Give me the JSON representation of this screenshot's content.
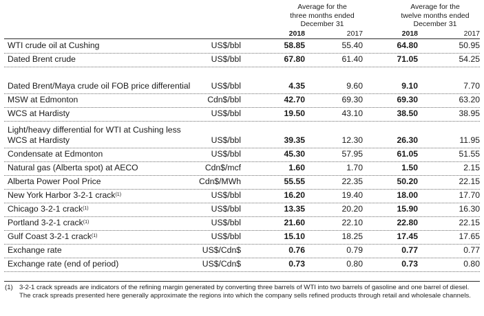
{
  "header": {
    "three_months": [
      "Average for the",
      "three months ended",
      "December 31"
    ],
    "twelve_months": [
      "Average for the",
      "twelve months ended",
      "December 31"
    ],
    "years": [
      "2018",
      "2017",
      "2018",
      "2017"
    ]
  },
  "rows": [
    {
      "label": "WTI crude oil at Cushing",
      "unit": "US$/bbl",
      "q2018": "58.85",
      "q2017": "55.40",
      "y2018": "64.80",
      "y2017": "50.95"
    },
    {
      "label": "Dated Brent crude",
      "unit": "US$/bbl",
      "q2018": "67.80",
      "q2017": "61.40",
      "y2018": "71.05",
      "y2017": "54.25"
    },
    {
      "label": "Dated Brent/Maya crude oil FOB price differential",
      "unit": "US$/bbl",
      "q2018": "4.35",
      "q2017": "9.60",
      "y2018": "9.10",
      "y2017": "7.70"
    },
    {
      "label": "MSW at Edmonton",
      "unit": "Cdn$/bbl",
      "q2018": "42.70",
      "q2017": "69.30",
      "y2018": "69.30",
      "y2017": "63.20"
    },
    {
      "label": "WCS at Hardisty",
      "unit": "US$/bbl",
      "q2018": "19.50",
      "q2017": "43.10",
      "y2018": "38.50",
      "y2017": "38.95"
    },
    {
      "label": "Light/heavy differential for WTI at Cushing less WCS at Hardisty",
      "unit": "US$/bbl",
      "q2018": "39.35",
      "q2017": "12.30",
      "y2018": "26.30",
      "y2017": "11.95"
    },
    {
      "label": "Condensate at Edmonton",
      "unit": "US$/bbl",
      "q2018": "45.30",
      "q2017": "57.95",
      "y2018": "61.05",
      "y2017": "51.55"
    },
    {
      "label": "Natural gas (Alberta spot) at AECO",
      "unit": "Cdn$/mcf",
      "q2018": "1.60",
      "q2017": "1.70",
      "y2018": "1.50",
      "y2017": "2.15"
    },
    {
      "label": "Alberta Power Pool Price",
      "unit": "Cdn$/MWh",
      "q2018": "55.55",
      "q2017": "22.35",
      "y2018": "50.20",
      "y2017": "22.15"
    },
    {
      "label": "New York Harbor 3-2-1 crack",
      "note": "(1)",
      "unit": "US$/bbl",
      "q2018": "16.20",
      "q2017": "19.40",
      "y2018": "18.00",
      "y2017": "17.70"
    },
    {
      "label": "Chicago 3-2-1 crack",
      "note": "(1)",
      "unit": "US$/bbl",
      "q2018": "13.35",
      "q2017": "20.20",
      "y2018": "15.90",
      "y2017": "16.30"
    },
    {
      "label": "Portland 3-2-1 crack",
      "note": "(1)",
      "unit": "US$/bbl",
      "q2018": "21.60",
      "q2017": "22.10",
      "y2018": "22.80",
      "y2017": "22.15"
    },
    {
      "label": "Gulf Coast 3-2-1 crack",
      "note": "(1)",
      "unit": "US$/bbl",
      "q2018": "15.10",
      "q2017": "18.25",
      "y2018": "17.45",
      "y2017": "17.65"
    },
    {
      "label": "Exchange rate",
      "unit": "US$/Cdn$",
      "q2018": "0.76",
      "q2017": "0.79",
      "y2018": "0.77",
      "y2017": "0.77"
    },
    {
      "label": "Exchange rate (end of period)",
      "unit": "US$/Cdn$",
      "q2018": "0.73",
      "q2017": "0.80",
      "y2018": "0.73",
      "y2017": "0.80"
    }
  ],
  "footnote": {
    "marker": "(1)",
    "text": "3-2-1 crack spreads are indicators of the refining margin generated by converting three barrels of WTI into two barrels of gasoline and one barrel of diesel. The crack spreads presented here generally approximate the regions into which the company sells refined products through retail and wholesale channels."
  }
}
